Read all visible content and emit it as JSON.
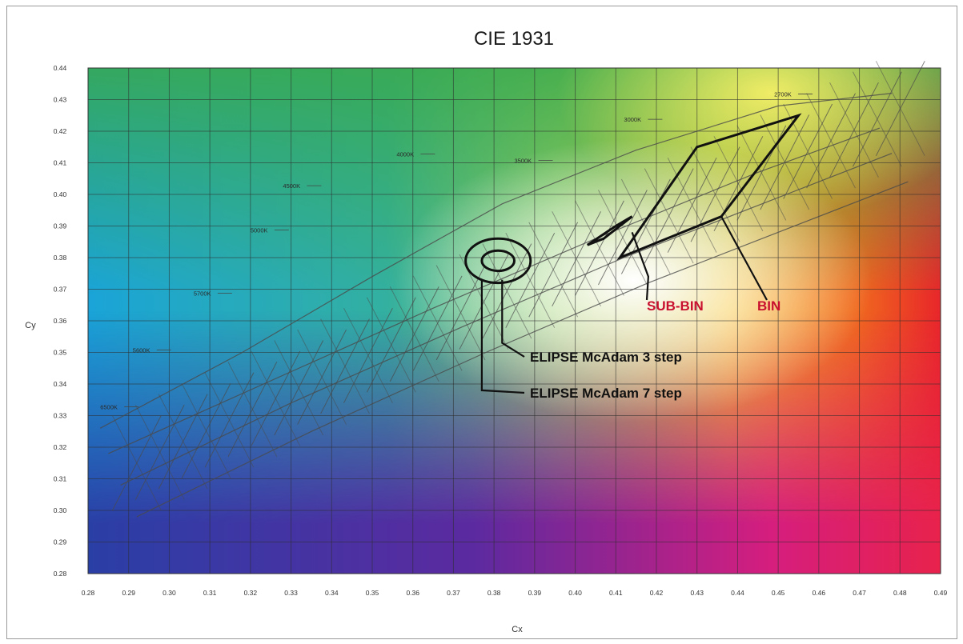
{
  "chart_data": {
    "type": "scatter",
    "title": "CIE 1931",
    "xlabel": "Cx",
    "ylabel": "Cy",
    "xlim": [
      0.28,
      0.49
    ],
    "ylim": [
      0.28,
      0.44
    ],
    "x_ticks": [
      "0.28",
      "0.29",
      "0.30",
      "0.31",
      "0.32",
      "0.33",
      "0.34",
      "0.35",
      "0.36",
      "0.37",
      "0.38",
      "0.39",
      "0.40",
      "0.41",
      "0.42",
      "0.43",
      "0.44",
      "0.45",
      "0.46",
      "0.47",
      "0.48",
      "0.49"
    ],
    "y_ticks": [
      "0.44",
      "0.43",
      "0.42",
      "0.41",
      "0.40",
      "0.39",
      "0.38",
      "0.37",
      "0.36",
      "0.35",
      "0.34",
      "0.33",
      "0.32",
      "0.31",
      "0.30",
      "0.29",
      "0.28"
    ],
    "grid": true,
    "cct_labels": [
      {
        "text": "6500K",
        "x": 0.283,
        "y": 0.332
      },
      {
        "text": "5600K",
        "x": 0.291,
        "y": 0.35
      },
      {
        "text": "5700K",
        "x": 0.306,
        "y": 0.368
      },
      {
        "text": "5000K",
        "x": 0.32,
        "y": 0.388
      },
      {
        "text": "4500K",
        "x": 0.328,
        "y": 0.402
      },
      {
        "text": "4000K",
        "x": 0.356,
        "y": 0.412
      },
      {
        "text": "3500K",
        "x": 0.385,
        "y": 0.41
      },
      {
        "text": "3000K",
        "x": 0.412,
        "y": 0.423
      },
      {
        "text": "2700K",
        "x": 0.449,
        "y": 0.431
      }
    ],
    "locus_lines": [
      {
        "points": [
          [
            0.285,
            0.318
          ],
          [
            0.325,
            0.341
          ],
          [
            0.365,
            0.364
          ],
          [
            0.405,
            0.386
          ],
          [
            0.445,
            0.407
          ],
          [
            0.475,
            0.421
          ]
        ]
      },
      {
        "points": [
          [
            0.288,
            0.308
          ],
          [
            0.33,
            0.334
          ],
          [
            0.372,
            0.358
          ],
          [
            0.412,
            0.38
          ],
          [
            0.452,
            0.4
          ],
          [
            0.478,
            0.413
          ]
        ]
      },
      {
        "points": [
          [
            0.292,
            0.298
          ],
          [
            0.335,
            0.325
          ],
          [
            0.378,
            0.35
          ],
          [
            0.418,
            0.372
          ],
          [
            0.458,
            0.392
          ],
          [
            0.482,
            0.404
          ]
        ]
      },
      {
        "points": [
          [
            0.283,
            0.326
          ],
          [
            0.318,
            0.35
          ],
          [
            0.35,
            0.374
          ],
          [
            0.382,
            0.397
          ],
          [
            0.415,
            0.414
          ],
          [
            0.45,
            0.428
          ],
          [
            0.478,
            0.432
          ]
        ]
      }
    ],
    "ellipses": [
      {
        "name": "ELIPSE McAdam 3 step",
        "cx": 0.381,
        "cy": 0.379,
        "rx": 0.004,
        "ry": 0.0032
      },
      {
        "name": "ELIPSE McAdam 7 step",
        "cx": 0.381,
        "cy": 0.379,
        "rx": 0.008,
        "ry": 0.007
      }
    ],
    "bin_polygon": [
      [
        0.411,
        0.38
      ],
      [
        0.43,
        0.415
      ],
      [
        0.455,
        0.425
      ],
      [
        0.436,
        0.393
      ]
    ],
    "sub_bin_polygon": [
      [
        0.403,
        0.384
      ],
      [
        0.41,
        0.39
      ],
      [
        0.414,
        0.393
      ],
      [
        0.407,
        0.386
      ]
    ],
    "annotations": [
      "SUB-BIN",
      "BIN",
      "ELIPSE McAdam 3 step",
      "ELIPSE McAdam 7 step"
    ]
  }
}
